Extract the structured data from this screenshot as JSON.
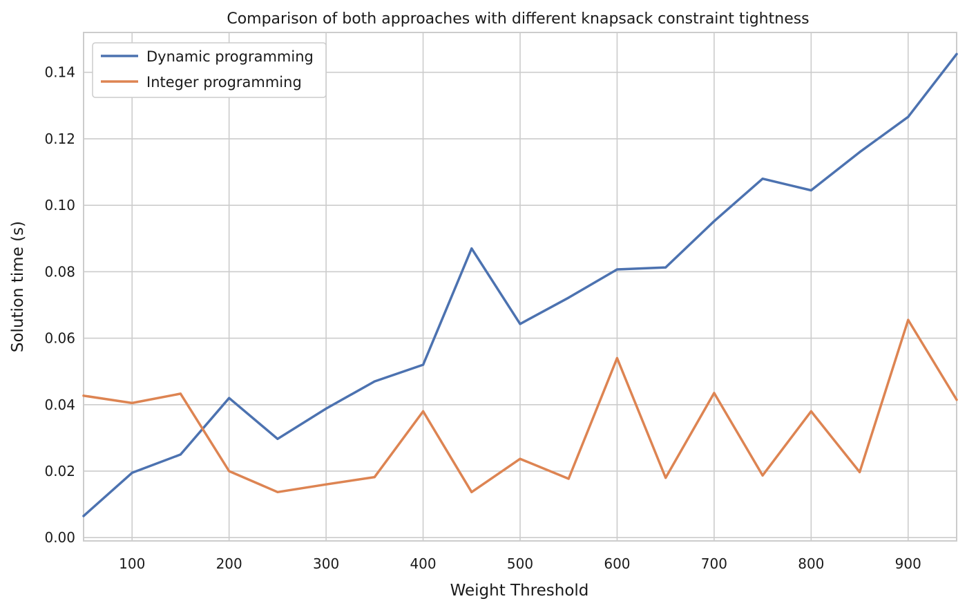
{
  "chart_data": {
    "type": "line",
    "title": "Comparison of both approaches with different knapsack constraint tightness",
    "xlabel": "Weight Threshold",
    "ylabel": "Solution time (s)",
    "xlim": [
      50,
      950
    ],
    "ylim": [
      -0.001,
      0.152
    ],
    "x_ticks": [
      "100",
      "200",
      "300",
      "400",
      "500",
      "600",
      "700",
      "800",
      "900"
    ],
    "y_ticks": [
      "0.00",
      "0.02",
      "0.04",
      "0.06",
      "0.08",
      "0.10",
      "0.12",
      "0.14"
    ],
    "grid": true,
    "legend_position": "upper left",
    "x": [
      50,
      100,
      150,
      200,
      250,
      300,
      350,
      400,
      450,
      500,
      550,
      600,
      650,
      700,
      750,
      800,
      850,
      900,
      950
    ],
    "series": [
      {
        "name": "Dynamic programming",
        "color": "#4c72b0",
        "values": [
          0.0065,
          0.0195,
          0.025,
          0.042,
          0.0297,
          0.0388,
          0.047,
          0.052,
          0.087,
          0.0643,
          0.0722,
          0.0807,
          0.0813,
          0.0952,
          0.108,
          0.1045,
          0.116,
          0.1266,
          0.1455
        ]
      },
      {
        "name": "Integer programming",
        "color": "#dd8452",
        "values": [
          0.0427,
          0.0405,
          0.0433,
          0.02,
          0.0137,
          0.016,
          0.0182,
          0.038,
          0.0137,
          0.0237,
          0.0177,
          0.054,
          0.018,
          0.0435,
          0.0187,
          0.038,
          0.0197,
          0.0655,
          0.0415
        ]
      }
    ]
  }
}
